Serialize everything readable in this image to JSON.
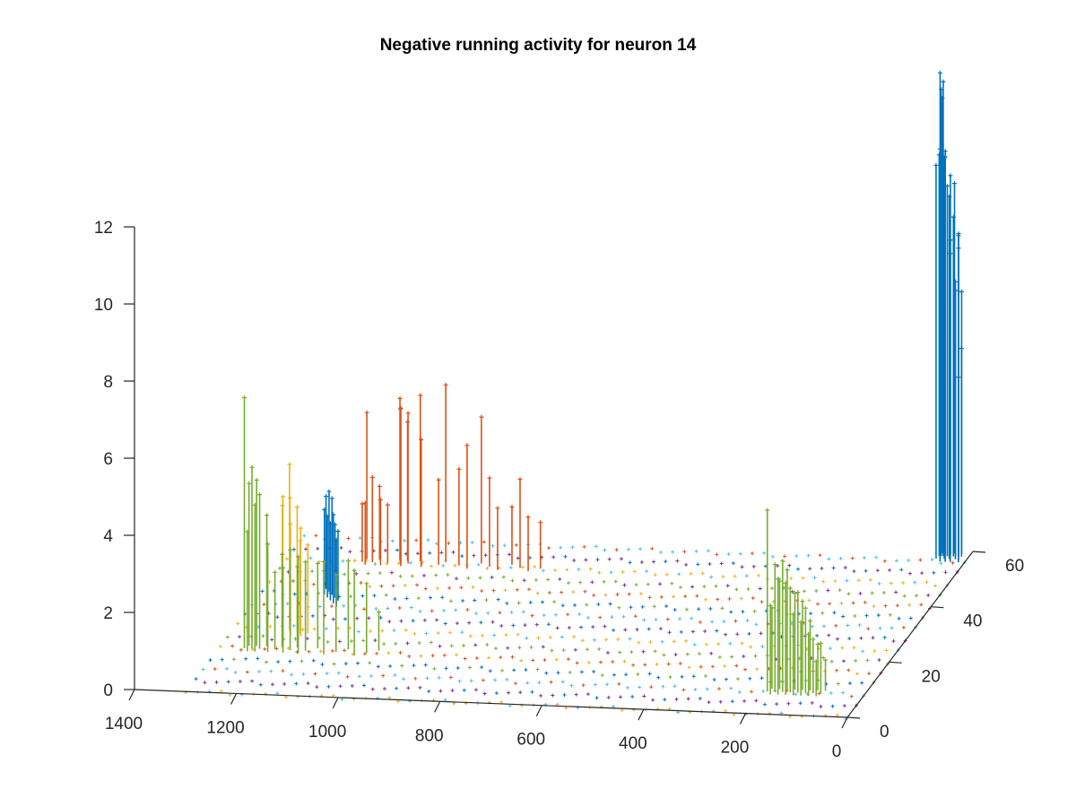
{
  "chart_data": {
    "type": "stem3",
    "title": "Negative running activity for neuron 14",
    "xlabel": "",
    "ylabel": "",
    "zlabel": "",
    "x_range": [
      0,
      1400
    ],
    "y_range": [
      0,
      60
    ],
    "z_range": [
      0,
      12
    ],
    "x_ticks": [
      "0",
      "200",
      "400",
      "600",
      "800",
      "1000",
      "1200",
      "1400"
    ],
    "y_ticks": [
      "0",
      "20",
      "40",
      "60"
    ],
    "z_ticks": [
      "0",
      "2",
      "4",
      "6",
      "8",
      "10",
      "12"
    ],
    "x_tick_values": [
      0,
      200,
      400,
      600,
      800,
      1000,
      1200,
      1400
    ],
    "y_tick_values": [
      0,
      20,
      40,
      60
    ],
    "z_tick_values": [
      0,
      2,
      4,
      6,
      8,
      10,
      12
    ],
    "baseline_rows_y": [
      0,
      4,
      8,
      12,
      16,
      20,
      24,
      28,
      32,
      36,
      40,
      44,
      48,
      52,
      56
    ],
    "baseline_x_extent": [
      0,
      1300
    ],
    "series": [
      {
        "name": "blue",
        "color": "#0072BD",
        "points": [
          {
            "x": 12,
            "y": 56,
            "z": 4.8
          },
          {
            "x": 14,
            "y": 58,
            "z": 5.4
          },
          {
            "x": 16,
            "y": 57,
            "z": 8.4
          },
          {
            "x": 18,
            "y": 59,
            "z": 6.8
          },
          {
            "x": 20,
            "y": 58,
            "z": 8.0
          },
          {
            "x": 22,
            "y": 57,
            "z": 7.2
          },
          {
            "x": 24,
            "y": 59,
            "z": 8.3
          },
          {
            "x": 26,
            "y": 58,
            "z": 6.9
          },
          {
            "x": 28,
            "y": 56,
            "z": 8.0
          },
          {
            "x": 30,
            "y": 58,
            "z": 8.8
          },
          {
            "x": 32,
            "y": 59,
            "z": 9.6
          },
          {
            "x": 34,
            "y": 57,
            "z": 9.4
          },
          {
            "x": 36,
            "y": 58,
            "z": 8.2
          },
          {
            "x": 38,
            "y": 56,
            "z": 10.5
          },
          {
            "x": 40,
            "y": 59,
            "z": 9.8
          },
          {
            "x": 42,
            "y": 58,
            "z": 9.6
          },
          {
            "x": 44,
            "y": 57,
            "z": 10.4
          },
          {
            "x": 46,
            "y": 58,
            "z": 10.5
          },
          {
            "x": 48,
            "y": 56,
            "z": 10.7
          },
          {
            "x": 50,
            "y": 58,
            "z": 12.3
          },
          {
            "x": 52,
            "y": 57,
            "z": 12.6
          },
          {
            "x": 54,
            "y": 58,
            "z": 12.1
          },
          {
            "x": 56,
            "y": 59,
            "z": 11.8
          },
          {
            "x": 58,
            "y": 58,
            "z": 10.4
          },
          {
            "x": 60,
            "y": 57,
            "z": 10.2
          },
          {
            "x": 1180,
            "y": 38,
            "z": 2.4
          },
          {
            "x": 1175,
            "y": 36,
            "z": 2.2
          },
          {
            "x": 1170,
            "y": 37,
            "z": 2.6
          },
          {
            "x": 1165,
            "y": 35,
            "z": 2.1
          },
          {
            "x": 1160,
            "y": 36,
            "z": 2.5
          },
          {
            "x": 1155,
            "y": 34,
            "z": 2.0
          },
          {
            "x": 1150,
            "y": 35,
            "z": 1.9
          },
          {
            "x": 1145,
            "y": 33,
            "z": 2.3
          },
          {
            "x": 1140,
            "y": 34,
            "z": 1.8
          },
          {
            "x": 1135,
            "y": 32,
            "z": 1.7
          }
        ]
      },
      {
        "name": "orange",
        "color": "#D95319",
        "points": [
          {
            "x": 1150,
            "y": 48,
            "z": 1.5
          },
          {
            "x": 1145,
            "y": 49,
            "z": 3.8
          },
          {
            "x": 1140,
            "y": 47,
            "z": 1.6
          },
          {
            "x": 1130,
            "y": 48,
            "z": 2.2
          },
          {
            "x": 1120,
            "y": 49,
            "z": 1.9
          },
          {
            "x": 1110,
            "y": 47,
            "z": 1.7
          },
          {
            "x": 1100,
            "y": 48,
            "z": 1.5
          },
          {
            "x": 1080,
            "y": 49,
            "z": 4.2
          },
          {
            "x": 1075,
            "y": 48,
            "z": 4.0
          },
          {
            "x": 1070,
            "y": 47,
            "z": 4.1
          },
          {
            "x": 1065,
            "y": 49,
            "z": 3.6
          },
          {
            "x": 1060,
            "y": 48,
            "z": 3.9
          },
          {
            "x": 1040,
            "y": 49,
            "z": 4.3
          },
          {
            "x": 1030,
            "y": 47,
            "z": 3.3
          },
          {
            "x": 1000,
            "y": 48,
            "z": 2.2
          },
          {
            "x": 990,
            "y": 49,
            "z": 4.6
          },
          {
            "x": 960,
            "y": 48,
            "z": 2.5
          },
          {
            "x": 940,
            "y": 47,
            "z": 3.2
          },
          {
            "x": 920,
            "y": 49,
            "z": 3.8
          },
          {
            "x": 900,
            "y": 48,
            "z": 2.3
          },
          {
            "x": 880,
            "y": 47,
            "z": 1.6
          },
          {
            "x": 860,
            "y": 49,
            "z": 1.5
          },
          {
            "x": 840,
            "y": 48,
            "z": 2.3
          },
          {
            "x": 820,
            "y": 47,
            "z": 1.4
          },
          {
            "x": 800,
            "y": 48,
            "z": 1.2
          }
        ]
      },
      {
        "name": "yellow",
        "color": "#EDB120",
        "points": [
          {
            "x": 1200,
            "y": 22,
            "z": 3.3
          },
          {
            "x": 1195,
            "y": 21,
            "z": 3.6
          },
          {
            "x": 1190,
            "y": 23,
            "z": 4.3
          },
          {
            "x": 1185,
            "y": 22,
            "z": 3.5
          },
          {
            "x": 1180,
            "y": 21,
            "z": 2.9
          },
          {
            "x": 1175,
            "y": 23,
            "z": 3.2
          },
          {
            "x": 1165,
            "y": 22,
            "z": 2.4
          },
          {
            "x": 1160,
            "y": 21,
            "z": 2.8
          },
          {
            "x": 1150,
            "y": 22,
            "z": 2.3
          }
        ]
      },
      {
        "name": "purple",
        "color": "#7E2F8E",
        "points": []
      },
      {
        "name": "green",
        "color": "#77AC30",
        "points": [
          {
            "x": 1250,
            "y": 16,
            "z": 6.5
          },
          {
            "x": 1245,
            "y": 17,
            "z": 4.2
          },
          {
            "x": 1240,
            "y": 15,
            "z": 3.1
          },
          {
            "x": 1235,
            "y": 16,
            "z": 4.7
          },
          {
            "x": 1230,
            "y": 17,
            "z": 4.3
          },
          {
            "x": 1225,
            "y": 15,
            "z": 3.8
          },
          {
            "x": 1220,
            "y": 16,
            "z": 4.0
          },
          {
            "x": 1210,
            "y": 17,
            "z": 3.4
          },
          {
            "x": 1200,
            "y": 15,
            "z": 2.8
          },
          {
            "x": 1190,
            "y": 16,
            "z": 2.0
          },
          {
            "x": 1180,
            "y": 17,
            "z": 2.4
          },
          {
            "x": 1170,
            "y": 15,
            "z": 2.2
          },
          {
            "x": 1160,
            "y": 16,
            "z": 2.6
          },
          {
            "x": 1150,
            "y": 17,
            "z": 2.1
          },
          {
            "x": 1140,
            "y": 15,
            "z": 2.5
          },
          {
            "x": 1130,
            "y": 16,
            "z": 2.3
          },
          {
            "x": 1110,
            "y": 17,
            "z": 2.2
          },
          {
            "x": 1090,
            "y": 15,
            "z": 2.4
          },
          {
            "x": 1070,
            "y": 16,
            "z": 2.0
          },
          {
            "x": 1050,
            "y": 17,
            "z": 2.3
          },
          {
            "x": 1030,
            "y": 15,
            "z": 2.2
          },
          {
            "x": 1010,
            "y": 16,
            "z": 1.8
          },
          {
            "x": 990,
            "y": 17,
            "z": 1.0
          },
          {
            "x": 190,
            "y": 8,
            "z": 4.7
          },
          {
            "x": 185,
            "y": 9,
            "z": 2.1
          },
          {
            "x": 180,
            "y": 7,
            "z": 2.3
          },
          {
            "x": 175,
            "y": 8,
            "z": 3.3
          },
          {
            "x": 170,
            "y": 9,
            "z": 2.8
          },
          {
            "x": 165,
            "y": 7,
            "z": 3.0
          },
          {
            "x": 160,
            "y": 8,
            "z": 3.4
          },
          {
            "x": 155,
            "y": 9,
            "z": 3.1
          },
          {
            "x": 150,
            "y": 7,
            "z": 2.9
          },
          {
            "x": 145,
            "y": 8,
            "z": 2.7
          },
          {
            "x": 140,
            "y": 9,
            "z": 2.5
          },
          {
            "x": 135,
            "y": 7,
            "z": 2.1
          },
          {
            "x": 130,
            "y": 8,
            "z": 2.6
          },
          {
            "x": 125,
            "y": 9,
            "z": 2.3
          },
          {
            "x": 120,
            "y": 7,
            "z": 1.9
          },
          {
            "x": 115,
            "y": 8,
            "z": 2.2
          },
          {
            "x": 110,
            "y": 9,
            "z": 1.8
          },
          {
            "x": 105,
            "y": 7,
            "z": 1.6
          },
          {
            "x": 100,
            "y": 8,
            "z": 1.4
          },
          {
            "x": 95,
            "y": 9,
            "z": 1.2
          },
          {
            "x": 90,
            "y": 7,
            "z": 0.9
          },
          {
            "x": 85,
            "y": 8,
            "z": 1.3
          },
          {
            "x": 80,
            "y": 9,
            "z": 0.8
          }
        ]
      }
    ],
    "row_marker_colors": [
      "#EDB120",
      "#7E2F8E",
      "#4DBEEE",
      "#0072BD",
      "#D95319",
      "#77AC30"
    ]
  }
}
